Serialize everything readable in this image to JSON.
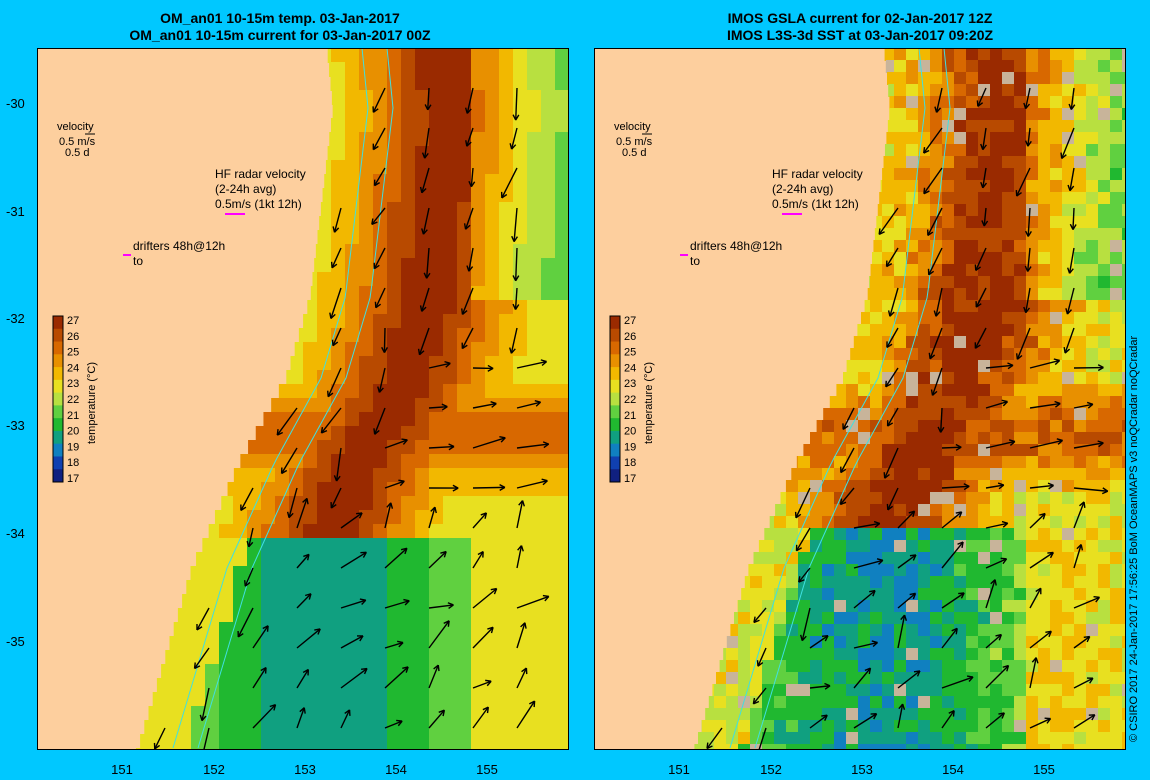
{
  "colors": {
    "background": "#00c8ff",
    "land": "#fdcf9e",
    "drifter": "#ff00ff",
    "radar": "#ff00ff",
    "contour": "#40e0e0",
    "missing": "#c8b49a"
  },
  "panels": [
    {
      "title_line1": "OM_an01 10-15m temp. 03-Jan-2017",
      "title_line2": "OM_an01 10-15m current for 03-Jan-2017 00Z",
      "kind": "model"
    },
    {
      "title_line1": "IMOS GSLA current for 02-Jan-2017 12Z",
      "title_line2": "IMOS L3S-3d SST at 03-Jan-2017 09:20Z",
      "kind": "satellite"
    }
  ],
  "legend": {
    "velocity_title": "velocity",
    "velocity_scale": "0.5 m/s",
    "velocity_duration": "0.5 d",
    "radar_line1": "HF radar velocity",
    "radar_line2": "(2-24h avg)",
    "radar_line3": "0.5m/s (1kt 12h)",
    "drifters_line1": "drifters 48h@12h",
    "drifters_line2": "to"
  },
  "colorbar": {
    "label": "temperature (°C)",
    "ticks": [
      "27",
      "26",
      "25",
      "24",
      "23",
      "22",
      "21",
      "20",
      "19",
      "18",
      "17"
    ],
    "colors": [
      "#9a2a00",
      "#b84a00",
      "#d86800",
      "#e89000",
      "#f2b800",
      "#e8e020",
      "#b8e040",
      "#60d040",
      "#20b830",
      "#10a080",
      "#1080c0",
      "#1040b0",
      "#102080"
    ]
  },
  "axes": {
    "y_ticks": [
      "-30",
      "-31",
      "-32",
      "-33",
      "-34",
      "-35"
    ],
    "x_ticks": [
      "151",
      "152",
      "153",
      "154",
      "155"
    ]
  },
  "credit": "© CSIRO 2017   24-Jan-2017 17:56:25 BoM OceanMAPS v3 noQCradar noQCradar"
}
